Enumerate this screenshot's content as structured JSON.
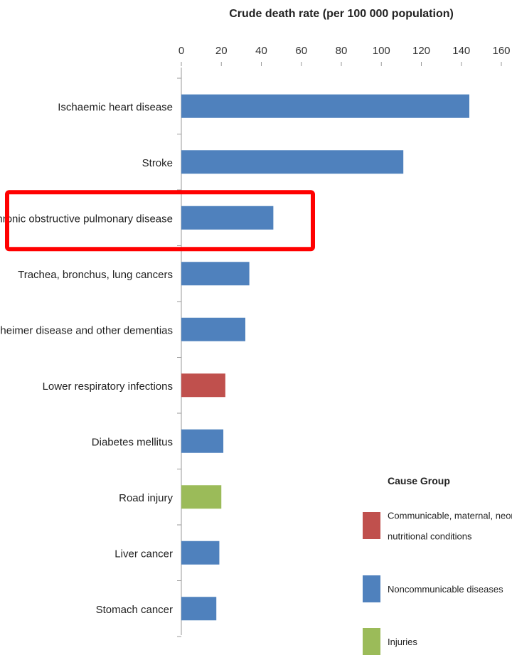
{
  "chart_data": {
    "type": "bar",
    "orientation": "horizontal",
    "xlabel": "Crude death rate (per 100 000 population)",
    "xlim": [
      0,
      160
    ],
    "xticks": [
      0,
      20,
      40,
      60,
      80,
      100,
      120,
      140,
      160
    ],
    "x_axis_position": "top",
    "grid": false,
    "categories": [
      "Ischaemic heart disease",
      "Stroke",
      "Chronic obstructive pulmonary disease",
      "Trachea, bronchus, lung cancers",
      "Alzheimer disease and other dementias",
      "Lower respiratory infections",
      "Diabetes mellitus",
      "Road injury",
      "Liver cancer",
      "Stomach cancer"
    ],
    "values": [
      144,
      111,
      46,
      34,
      32,
      22,
      21,
      20,
      19,
      17.5
    ],
    "groups": [
      "Noncommunicable diseases",
      "Noncommunicable diseases",
      "Noncommunicable diseases",
      "Noncommunicable diseases",
      "Noncommunicable diseases",
      "Communicable, maternal, neonatal and nutritional conditions",
      "Noncommunicable diseases",
      "Injuries",
      "Noncommunicable diseases",
      "Noncommunicable diseases"
    ],
    "highlighted_category": "Chronic obstructive pulmonary disease",
    "highlight_color": "#ff0000",
    "legend": {
      "title": "Cause Group",
      "position": "bottom-right",
      "entries": [
        {
          "label": "Communicable, maternal, neonatal and nutritional conditions",
          "color": "#c0504d"
        },
        {
          "label": "Noncommunicable diseases",
          "color": "#4f81bd"
        },
        {
          "label": "Injuries",
          "color": "#9bbb59"
        }
      ]
    }
  }
}
